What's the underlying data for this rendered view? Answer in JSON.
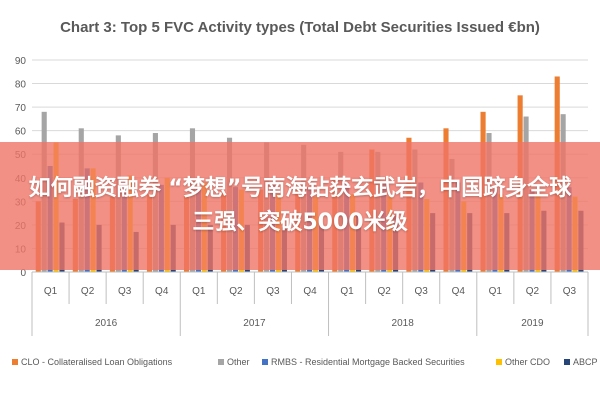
{
  "chart_data": {
    "type": "bar",
    "title": "Chart 3: Top 5 FVC Activity types (Total Debt Securities Issued €bn)",
    "ylim": [
      0,
      90
    ],
    "yticks": [
      0,
      10,
      20,
      30,
      40,
      50,
      60,
      70,
      80,
      90
    ],
    "grid": true,
    "legend_position": "bottom",
    "categories": [
      "Q1",
      "Q2",
      "Q3",
      "Q4",
      "Q1",
      "Q2",
      "Q3",
      "Q4",
      "Q1",
      "Q2",
      "Q3",
      "Q4",
      "Q1",
      "Q2",
      "Q3"
    ],
    "years": [
      {
        "label": "2016",
        "quarters": 4
      },
      {
        "label": "2017",
        "quarters": 4
      },
      {
        "label": "2018",
        "quarters": 4
      },
      {
        "label": "2019",
        "quarters": 3
      }
    ],
    "series": [
      {
        "name": "CLO - Collateralised Loan Obligations",
        "color": "#ED7D31",
        "values": [
          30,
          31,
          32,
          33,
          33,
          34,
          35,
          36,
          40,
          52,
          57,
          61,
          68,
          75,
          83
        ]
      },
      {
        "name": "Other",
        "color": "#A5A5A5",
        "values": [
          68,
          61,
          58,
          59,
          61,
          57,
          55,
          54,
          51,
          51,
          52,
          48,
          59,
          66,
          67
        ]
      },
      {
        "name": "RMBS - Residential Mortgage Backed Securities",
        "color": "#4472C4",
        "values": [
          45,
          44,
          38,
          37,
          36,
          36,
          37,
          36,
          38,
          38,
          38,
          38,
          35,
          35,
          36
        ]
      },
      {
        "name": "Other CDO",
        "color": "#FFC000",
        "values": [
          55,
          44,
          41,
          40,
          38,
          35,
          33,
          32,
          33,
          32,
          31,
          30,
          33,
          33,
          32
        ]
      },
      {
        "name": "ABCP",
        "color": "#264478",
        "values": [
          21,
          20,
          17,
          20,
          20,
          20,
          19,
          20,
          24,
          24,
          25,
          25,
          25,
          26,
          26
        ]
      }
    ]
  },
  "banner": {
    "text": "如何融资融券 “梦想”号南海钻获玄武岩，中国跻身全球三强、突破5000米级"
  }
}
